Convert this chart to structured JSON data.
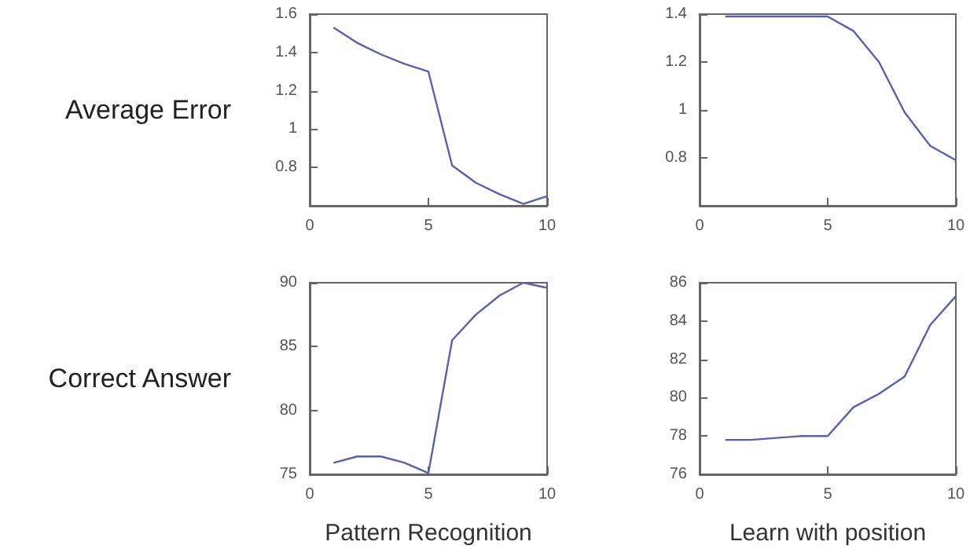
{
  "chart_data": [
    {
      "type": "line",
      "ylabel": "Average Error",
      "x": [
        1,
        2,
        3,
        4,
        5,
        6,
        7,
        8,
        9,
        10
      ],
      "series": [
        {
          "color": "#5b5fb0",
          "values": [
            1.53,
            1.45,
            1.39,
            1.34,
            1.3,
            0.81,
            0.72,
            0.66,
            0.61,
            0.65
          ]
        }
      ],
      "xlim": [
        0,
        10
      ],
      "xticks": [
        0,
        5,
        10
      ],
      "ylim": [
        0.6,
        1.6
      ],
      "yticks": [
        0.8,
        1,
        1.2,
        1.4,
        1.6
      ],
      "grid": false,
      "marker": "none"
    },
    {
      "type": "line",
      "x": [
        1,
        2,
        3,
        4,
        5,
        6,
        7,
        8,
        9,
        10
      ],
      "series": [
        {
          "color": "#5b5fb0",
          "values": [
            1.39,
            1.39,
            1.39,
            1.39,
            1.39,
            1.33,
            1.2,
            0.99,
            0.85,
            0.79
          ]
        }
      ],
      "xlim": [
        0,
        10
      ],
      "xticks": [
        0,
        5,
        10
      ],
      "ylim": [
        0.6,
        1.4
      ],
      "yticks": [
        0.8,
        1,
        1.2,
        1.4
      ],
      "grid": false,
      "marker": "none"
    },
    {
      "type": "line",
      "ylabel": "Correct Answer",
      "xlabel": "Pattern Recognition",
      "x": [
        1,
        2,
        3,
        4,
        5,
        6,
        7,
        8,
        9,
        10
      ],
      "series": [
        {
          "color": "#5b5fb0",
          "values": [
            75.9,
            76.4,
            76.4,
            75.9,
            75.1,
            85.5,
            87.5,
            89,
            90,
            89.6
          ]
        }
      ],
      "xlim": [
        0,
        10
      ],
      "xticks": [
        0,
        5,
        10
      ],
      "ylim": [
        75,
        90
      ],
      "yticks": [
        75,
        80,
        85,
        90
      ],
      "grid": false,
      "marker": "none"
    },
    {
      "type": "line",
      "xlabel": "Learn with position",
      "x": [
        1,
        2,
        3,
        4,
        5,
        6,
        7,
        8,
        9,
        10
      ],
      "series": [
        {
          "color": "#5b5fb0",
          "values": [
            77.8,
            77.8,
            77.9,
            78,
            78,
            79.5,
            80.2,
            81.1,
            83.8,
            85.3
          ]
        }
      ],
      "xlim": [
        0,
        10
      ],
      "xticks": [
        0,
        5,
        10
      ],
      "ylim": [
        76,
        86
      ],
      "yticks": [
        76,
        78,
        80,
        82,
        84,
        86
      ],
      "grid": false,
      "marker": "none"
    }
  ]
}
